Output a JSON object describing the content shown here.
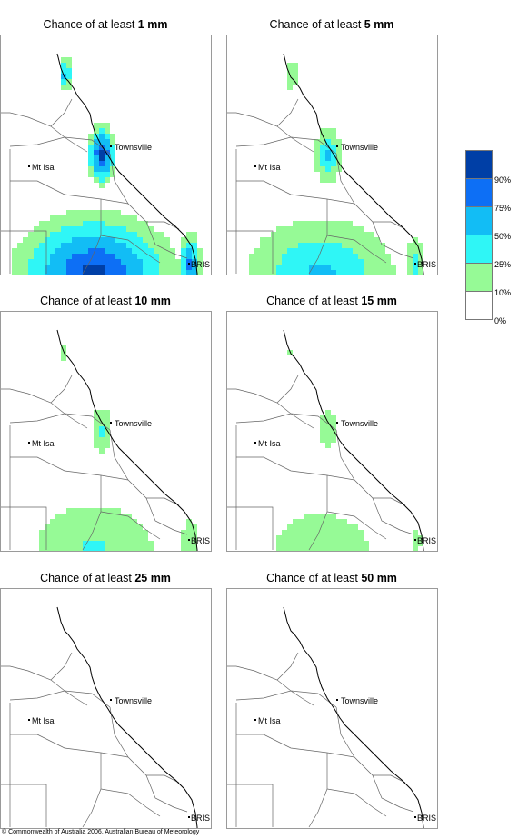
{
  "panels": [
    {
      "title_prefix": "Chance of at least ",
      "amount": "1 mm",
      "intensity": 5
    },
    {
      "title_prefix": "Chance of at least ",
      "amount": "5 mm",
      "intensity": 3
    },
    {
      "title_prefix": "Chance of at least ",
      "amount": "10 mm",
      "intensity": 2
    },
    {
      "title_prefix": "Chance of at least ",
      "amount": "15 mm",
      "intensity": 1.6
    },
    {
      "title_prefix": "Chance of at least ",
      "amount": "25 mm",
      "intensity": 0.6
    },
    {
      "title_prefix": "Chance of at least ",
      "amount": "50 mm",
      "intensity": 0
    }
  ],
  "places": {
    "townsville": "Townsville",
    "mt_isa": "Mt Isa",
    "brisbane": "BRIS"
  },
  "legend": {
    "levels": [
      "90%",
      "75%",
      "50%",
      "25%",
      "10%",
      "0%"
    ],
    "colors": [
      "#003fa6",
      "#0d6ff5",
      "#12bdf5",
      "#2ff6f6",
      "#96fa96",
      "#ffffff"
    ]
  },
  "footer": {
    "credit": "© Commonwealth of Australia 2006, Australian Bureau of Meteorology"
  },
  "colors": {
    "coast": "#000000",
    "border": "#666666",
    "frame": "#9a9a9a"
  }
}
